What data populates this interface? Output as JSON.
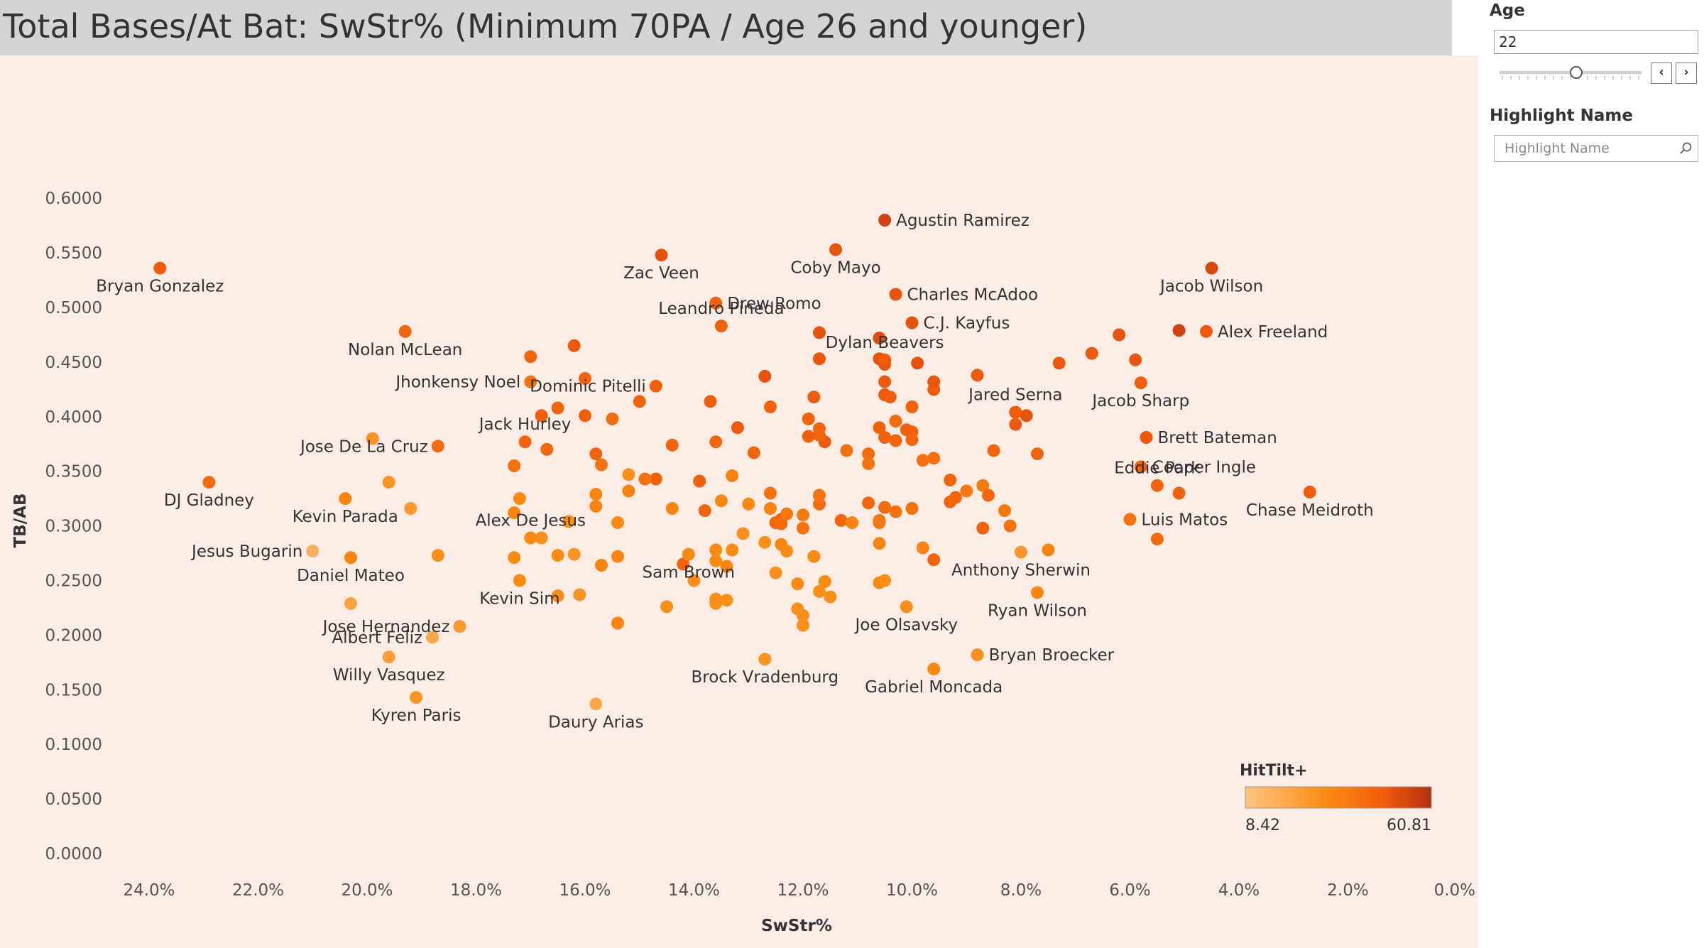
{
  "title": "Total Bases/At Bat: SwStr% (Minimum 70PA / Age 26 and younger)",
  "filters": {
    "age_label": "Age",
    "age_value": "22",
    "highlight_label": "Highlight Name",
    "highlight_placeholder": "Highlight Name"
  },
  "colors": {
    "low": "#fdbf7a",
    "mid": "#fb8408",
    "high": "#b23012",
    "background": "#fbede6"
  },
  "chart_data": {
    "type": "scatter",
    "title": "Total Bases/At Bat: SwStr% (Minimum 70PA / Age 26 and younger)",
    "xlabel": "SwStr%",
    "ylabel": "TB/AB",
    "x_reversed": true,
    "xlim": [
      25.0,
      0.0
    ],
    "ylim": [
      0.0,
      0.6
    ],
    "x_ticks": [
      "24.0%",
      "22.0%",
      "20.0%",
      "18.0%",
      "16.0%",
      "14.0%",
      "12.0%",
      "10.0%",
      "8.0%",
      "6.0%",
      "4.0%",
      "2.0%",
      "0.0%"
    ],
    "x_tick_values": [
      24,
      22,
      20,
      18,
      16,
      14,
      12,
      10,
      8,
      6,
      4,
      2,
      0
    ],
    "y_ticks": [
      "0.6000",
      "0.5500",
      "0.5000",
      "0.4500",
      "0.4000",
      "0.3500",
      "0.3000",
      "0.2500",
      "0.2000",
      "0.1500",
      "0.1000",
      "0.0500",
      "0.0000"
    ],
    "y_tick_values": [
      0.6,
      0.55,
      0.5,
      0.45,
      0.4,
      0.35,
      0.3,
      0.25,
      0.2,
      0.15,
      0.1,
      0.05,
      0.0
    ],
    "color_legend": {
      "title": "HitTilt+",
      "min_label": "8.42",
      "max_label": "60.81",
      "min": 8.42,
      "max": 60.81
    },
    "labeled_points": [
      {
        "name": "Agustin Ramirez",
        "x": 10.5,
        "y": 0.58,
        "tilt": 55
      },
      {
        "name": "Zac Veen",
        "x": 14.6,
        "y": 0.548,
        "tilt": 50
      },
      {
        "name": "Coby Mayo",
        "x": 11.4,
        "y": 0.553,
        "tilt": 50
      },
      {
        "name": "Bryan Gonzalez",
        "x": 23.8,
        "y": 0.536,
        "tilt": 47
      },
      {
        "name": "Jacob Wilson",
        "x": 4.5,
        "y": 0.536,
        "tilt": 53
      },
      {
        "name": "Charles McAdoo",
        "x": 10.3,
        "y": 0.512,
        "tilt": 50
      },
      {
        "name": "Drew Romo",
        "x": 13.6,
        "y": 0.504,
        "tilt": 45
      },
      {
        "name": "C.J. Kayfus",
        "x": 10.0,
        "y": 0.486,
        "tilt": 50
      },
      {
        "name": "Leandro Pineda",
        "x": 13.5,
        "y": 0.483,
        "tilt": 45
      },
      {
        "name": "Nolan McLean",
        "x": 19.3,
        "y": 0.478,
        "tilt": 44
      },
      {
        "name": "Alex Freeland",
        "x": 4.6,
        "y": 0.478,
        "tilt": 48
      },
      {
        "name": "Dylan Beavers",
        "x": 10.5,
        "y": 0.452,
        "tilt": 47
      },
      {
        "name": "Dominic Pitelli",
        "x": 14.7,
        "y": 0.428,
        "tilt": 45
      },
      {
        "name": "Jhonkensy Noel",
        "x": 17.0,
        "y": 0.432,
        "tilt": 40
      },
      {
        "name": "Jared Serna",
        "x": 8.1,
        "y": 0.404,
        "tilt": 47
      },
      {
        "name": "Jacob Sharp",
        "x": 5.8,
        "y": 0.431,
        "tilt": 46
      },
      {
        "name": "Jack Hurley",
        "x": 17.1,
        "y": 0.377,
        "tilt": 44
      },
      {
        "name": "Brett Bateman",
        "x": 5.7,
        "y": 0.381,
        "tilt": 48
      },
      {
        "name": "Jose De La Cruz",
        "x": 18.7,
        "y": 0.373,
        "tilt": 42
      },
      {
        "name": "Cooper Ingle",
        "x": 5.8,
        "y": 0.354,
        "tilt": 44
      },
      {
        "name": "Eddie Park",
        "x": 5.5,
        "y": 0.337,
        "tilt": 44
      },
      {
        "name": "DJ Gladney",
        "x": 22.9,
        "y": 0.34,
        "tilt": 42
      },
      {
        "name": "Chase Meidroth",
        "x": 2.7,
        "y": 0.331,
        "tilt": 47
      },
      {
        "name": "Kevin Parada",
        "x": 20.4,
        "y": 0.325,
        "tilt": 34
      },
      {
        "name": "Luis Matos",
        "x": 6.0,
        "y": 0.306,
        "tilt": 40
      },
      {
        "name": "Alex De Jesus",
        "x": 17.0,
        "y": 0.289,
        "tilt": 32
      },
      {
        "name": "Jesus Bugarin",
        "x": 21.0,
        "y": 0.277,
        "tilt": 16
      },
      {
        "name": "Daniel Mateo",
        "x": 20.3,
        "y": 0.271,
        "tilt": 34
      },
      {
        "name": "Anthony Sherwin",
        "x": 8.0,
        "y": 0.276,
        "tilt": 27
      },
      {
        "name": "Sam Brown",
        "x": 14.1,
        "y": 0.274,
        "tilt": 32
      },
      {
        "name": "Kevin Sim",
        "x": 17.2,
        "y": 0.25,
        "tilt": 32
      },
      {
        "name": "Ryan Wilson",
        "x": 7.7,
        "y": 0.239,
        "tilt": 33
      },
      {
        "name": "Joe Olsavsky",
        "x": 10.1,
        "y": 0.226,
        "tilt": 30
      },
      {
        "name": "Jose Hernandez",
        "x": 18.3,
        "y": 0.208,
        "tilt": 26
      },
      {
        "name": "Albert Feliz",
        "x": 18.8,
        "y": 0.198,
        "tilt": 20
      },
      {
        "name": "Bryan Broecker",
        "x": 8.8,
        "y": 0.182,
        "tilt": 29
      },
      {
        "name": "Willy Vasquez",
        "x": 19.6,
        "y": 0.18,
        "tilt": 24
      },
      {
        "name": "Brock Vradenburg",
        "x": 12.7,
        "y": 0.178,
        "tilt": 28
      },
      {
        "name": "Gabriel Moncada",
        "x": 9.6,
        "y": 0.169,
        "tilt": 33
      },
      {
        "name": "Kyren Paris",
        "x": 19.1,
        "y": 0.143,
        "tilt": 28
      },
      {
        "name": "Daury Arias",
        "x": 15.8,
        "y": 0.137,
        "tilt": 20
      }
    ],
    "points": [
      [
        19.9,
        0.38,
        28
      ],
      [
        19.6,
        0.34,
        28
      ],
      [
        19.2,
        0.316,
        26
      ],
      [
        18.7,
        0.273,
        30
      ],
      [
        20.3,
        0.229,
        22
      ],
      [
        17.0,
        0.455,
        44
      ],
      [
        16.2,
        0.465,
        48
      ],
      [
        16.0,
        0.435,
        45
      ],
      [
        15.0,
        0.414,
        45
      ],
      [
        14.7,
        0.343,
        45
      ],
      [
        15.2,
        0.332,
        35
      ],
      [
        16.7,
        0.37,
        44
      ],
      [
        17.3,
        0.355,
        40
      ],
      [
        17.2,
        0.325,
        32
      ],
      [
        17.3,
        0.312,
        34
      ],
      [
        16.5,
        0.408,
        44
      ],
      [
        16.8,
        0.401,
        46
      ],
      [
        16.0,
        0.401,
        46
      ],
      [
        15.5,
        0.398,
        42
      ],
      [
        15.8,
        0.366,
        44
      ],
      [
        15.7,
        0.356,
        40
      ],
      [
        15.2,
        0.347,
        30
      ],
      [
        14.9,
        0.343,
        40
      ],
      [
        15.8,
        0.329,
        34
      ],
      [
        15.8,
        0.318,
        34
      ],
      [
        16.3,
        0.304,
        30
      ],
      [
        15.4,
        0.303,
        32
      ],
      [
        14.4,
        0.316,
        34
      ],
      [
        13.8,
        0.314,
        44
      ],
      [
        13.9,
        0.341,
        46
      ],
      [
        14.4,
        0.374,
        44
      ],
      [
        13.7,
        0.414,
        46
      ],
      [
        13.6,
        0.377,
        44
      ],
      [
        13.2,
        0.39,
        48
      ],
      [
        12.9,
        0.367,
        44
      ],
      [
        13.3,
        0.346,
        35
      ],
      [
        13.5,
        0.323,
        33
      ],
      [
        13.0,
        0.32,
        32
      ],
      [
        13.1,
        0.293,
        30
      ],
      [
        13.6,
        0.278,
        32
      ],
      [
        13.3,
        0.278,
        32
      ],
      [
        12.7,
        0.285,
        30
      ],
      [
        12.4,
        0.283,
        34
      ],
      [
        12.3,
        0.277,
        32
      ],
      [
        12.5,
        0.303,
        44
      ],
      [
        12.6,
        0.316,
        34
      ],
      [
        12.4,
        0.306,
        45
      ],
      [
        12.4,
        0.302,
        42
      ],
      [
        12.3,
        0.311,
        38
      ],
      [
        12.6,
        0.33,
        40
      ],
      [
        12.0,
        0.298,
        40
      ],
      [
        12.0,
        0.31,
        38
      ],
      [
        11.7,
        0.32,
        42
      ],
      [
        11.7,
        0.328,
        40
      ],
      [
        11.3,
        0.305,
        44
      ],
      [
        11.1,
        0.303,
        34
      ],
      [
        11.2,
        0.369,
        40
      ],
      [
        11.6,
        0.377,
        48
      ],
      [
        11.9,
        0.382,
        46
      ],
      [
        11.9,
        0.398,
        45
      ],
      [
        11.7,
        0.383,
        44
      ],
      [
        11.7,
        0.389,
        44
      ],
      [
        11.8,
        0.418,
        47
      ],
      [
        11.7,
        0.453,
        49
      ],
      [
        11.7,
        0.477,
        50
      ],
      [
        12.6,
        0.409,
        45
      ],
      [
        12.7,
        0.437,
        50
      ],
      [
        10.8,
        0.366,
        42
      ],
      [
        10.8,
        0.357,
        40
      ],
      [
        10.6,
        0.39,
        45
      ],
      [
        10.5,
        0.381,
        45
      ],
      [
        10.3,
        0.378,
        44
      ],
      [
        10.3,
        0.396,
        42
      ],
      [
        10.0,
        0.386,
        45
      ],
      [
        10.0,
        0.379,
        44
      ],
      [
        10.1,
        0.388,
        46
      ],
      [
        9.8,
        0.36,
        41
      ],
      [
        9.6,
        0.362,
        41
      ],
      [
        10.0,
        0.409,
        45
      ],
      [
        10.5,
        0.42,
        48
      ],
      [
        10.4,
        0.418,
        47
      ],
      [
        10.5,
        0.432,
        48
      ],
      [
        9.6,
        0.425,
        47
      ],
      [
        9.6,
        0.432,
        49
      ],
      [
        9.9,
        0.449,
        50
      ],
      [
        10.6,
        0.472,
        52
      ],
      [
        10.6,
        0.472,
        52
      ],
      [
        10.6,
        0.453,
        50
      ],
      [
        10.5,
        0.448,
        49
      ],
      [
        10.8,
        0.321,
        44
      ],
      [
        10.5,
        0.317,
        42
      ],
      [
        10.3,
        0.313,
        40
      ],
      [
        10.0,
        0.316,
        40
      ],
      [
        10.6,
        0.305,
        38
      ],
      [
        10.6,
        0.303,
        38
      ],
      [
        10.6,
        0.284,
        34
      ],
      [
        10.5,
        0.25,
        30
      ],
      [
        10.6,
        0.248,
        32
      ],
      [
        9.8,
        0.28,
        34
      ],
      [
        9.6,
        0.269,
        44
      ],
      [
        9.3,
        0.342,
        44
      ],
      [
        9.2,
        0.326,
        44
      ],
      [
        9.0,
        0.332,
        38
      ],
      [
        8.7,
        0.337,
        38
      ],
      [
        8.6,
        0.328,
        44
      ],
      [
        9.3,
        0.322,
        44
      ],
      [
        8.3,
        0.314,
        38
      ],
      [
        8.2,
        0.3,
        40
      ],
      [
        8.7,
        0.298,
        45
      ],
      [
        8.5,
        0.369,
        44
      ],
      [
        8.8,
        0.438,
        48
      ],
      [
        8.1,
        0.404,
        47
      ],
      [
        7.9,
        0.401,
        50
      ],
      [
        8.1,
        0.393,
        48
      ],
      [
        7.7,
        0.366,
        44
      ],
      [
        7.3,
        0.449,
        48
      ],
      [
        6.7,
        0.458,
        48
      ],
      [
        6.2,
        0.475,
        50
      ],
      [
        5.9,
        0.452,
        49
      ],
      [
        5.1,
        0.479,
        55
      ],
      [
        5.5,
        0.288,
        42
      ],
      [
        5.1,
        0.33,
        45
      ],
      [
        7.5,
        0.278,
        34
      ],
      [
        11.8,
        0.272,
        32
      ],
      [
        11.6,
        0.249,
        32
      ],
      [
        12.1,
        0.247,
        32
      ],
      [
        12.1,
        0.224,
        30
      ],
      [
        12.0,
        0.218,
        30
      ],
      [
        12.0,
        0.209,
        30
      ],
      [
        11.7,
        0.24,
        30
      ],
      [
        11.5,
        0.235,
        30
      ],
      [
        12.5,
        0.257,
        30
      ],
      [
        13.6,
        0.268,
        32
      ],
      [
        13.4,
        0.263,
        34
      ],
      [
        14.2,
        0.265,
        44
      ],
      [
        14.0,
        0.25,
        30
      ],
      [
        14.5,
        0.226,
        30
      ],
      [
        13.6,
        0.229,
        30
      ],
      [
        13.6,
        0.233,
        30
      ],
      [
        13.4,
        0.232,
        30
      ],
      [
        15.4,
        0.211,
        34
      ],
      [
        15.4,
        0.272,
        34
      ],
      [
        15.7,
        0.264,
        34
      ],
      [
        16.2,
        0.274,
        28
      ],
      [
        16.5,
        0.273,
        32
      ],
      [
        16.1,
        0.237,
        28
      ],
      [
        16.5,
        0.236,
        30
      ],
      [
        17.3,
        0.271,
        32
      ],
      [
        16.8,
        0.289,
        30
      ]
    ]
  }
}
